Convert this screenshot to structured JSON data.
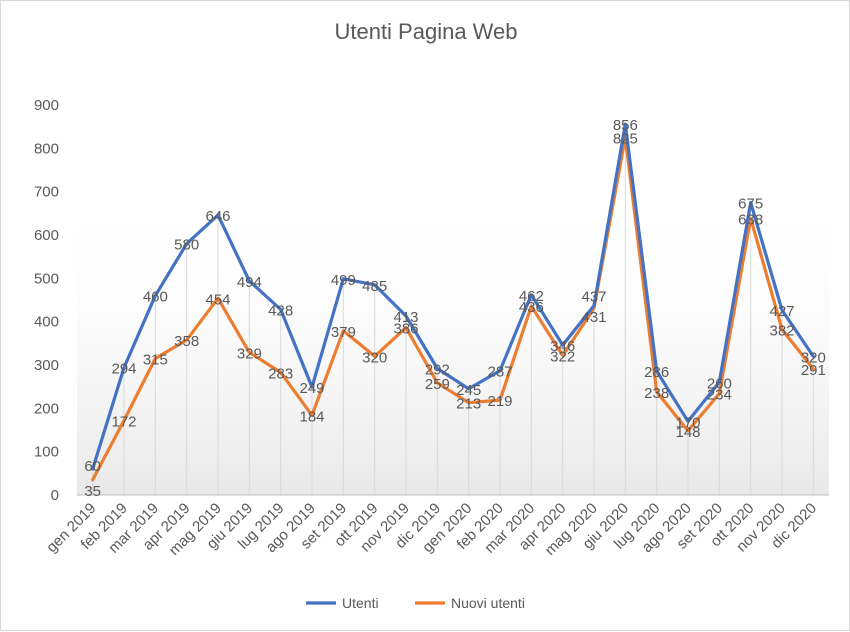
{
  "chart_data": {
    "type": "line",
    "title": "Utenti Pagina Web",
    "categories": [
      "gen 2019",
      "feb 2019",
      "mar 2019",
      "apr 2019",
      "mag 2019",
      "giu 2019",
      "lug 2019",
      "ago 2019",
      "set 2019",
      "ott 2019",
      "nov 2019",
      "dic 2019",
      "gen 2020",
      "feb 2020",
      "mar 2020",
      "apr 2020",
      "mag 2020",
      "giu 2020",
      "lug 2020",
      "ago 2020",
      "set 2020",
      "ott 2020",
      "nov 2020",
      "dic 2020"
    ],
    "series": [
      {
        "name": "Utenti",
        "color": "#4472c4",
        "values": [
          60,
          294,
          460,
          580,
          646,
          494,
          428,
          249,
          499,
          485,
          413,
          292,
          245,
          287,
          462,
          346,
          437,
          856,
          286,
          170,
          260,
          675,
          427,
          320
        ]
      },
      {
        "name": "Nuovi utenti",
        "color": "#ed7d31",
        "values": [
          35,
          172,
          315,
          358,
          454,
          329,
          283,
          184,
          379,
          320,
          386,
          259,
          213,
          219,
          436,
          322,
          431,
          825,
          238,
          148,
          234,
          638,
          382,
          291
        ]
      }
    ],
    "ylim": [
      0,
      900
    ],
    "yticks": [
      0,
      100,
      200,
      300,
      400,
      500,
      600,
      700,
      800,
      900
    ],
    "grid": "vertical-drop-lines",
    "legend": "bottom",
    "data_labels": true
  }
}
